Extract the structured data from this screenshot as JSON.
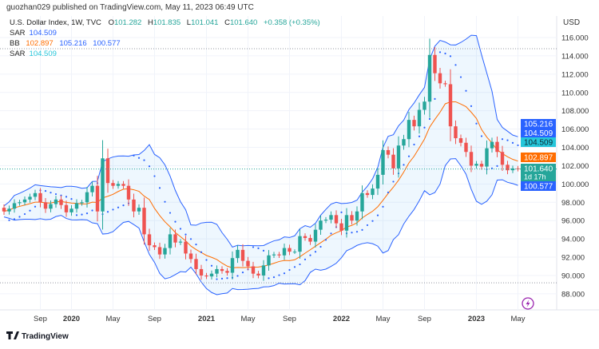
{
  "header": {
    "published": "guozhan029 published on TradingView.com, May 11, 2023 06:49 UTC"
  },
  "legend": {
    "symbol": "U.S. Dollar Index, 1W, TVC",
    "o_label": "O",
    "o": "101.282",
    "h_label": "H",
    "h": "101.835",
    "l_label": "L",
    "l": "101.041",
    "c_label": "C",
    "c": "101.640",
    "change": "+0.358 (+0.35%)",
    "sar1_label": "SAR",
    "sar1": "104.509",
    "bb_label": "BB",
    "bb_basis": "102.897",
    "bb_upper": "105.216",
    "bb_lower": "100.577",
    "sar2_label": "SAR",
    "sar2": "104.509"
  },
  "price_labels": {
    "upper": "105.216",
    "sar1": "104.509",
    "sar2": "104.509",
    "basis": "102.897",
    "last": "101.640",
    "countdown": "1d 17h",
    "lower": "100.577"
  },
  "footer": {
    "brand": "TradingView"
  },
  "colors": {
    "up": "#26a69a",
    "down": "#ef5350",
    "band": "#2962ff",
    "basis": "#ff6d00",
    "sar": "#2962ff",
    "sar2": "#26c6da"
  },
  "chart_data": {
    "type": "candlestick",
    "title": "U.S. Dollar Index, 1W, TVC",
    "currency": "USD",
    "ylim": [
      87,
      117
    ],
    "yticks": [
      "88.000",
      "90.000",
      "92.000",
      "94.000",
      "96.000",
      "98.000",
      "100.000",
      "102.000",
      "104.000",
      "106.000",
      "108.000",
      "110.000",
      "112.000",
      "114.000",
      "116.000"
    ],
    "xticks": [
      "Sep",
      "2020",
      "May",
      "Sep",
      "2021",
      "May",
      "Sep",
      "2022",
      "May",
      "Sep",
      "2023",
      "May"
    ],
    "xtick_index": [
      7,
      13,
      21,
      29,
      39,
      47,
      55,
      65,
      73,
      81,
      91,
      99
    ],
    "period_high": 114.78,
    "period_low": 89.2,
    "closes_start_open": 97.4,
    "closes": [
      97.0,
      97.3,
      97.9,
      98.0,
      98.3,
      98.6,
      99.0,
      98.0,
      97.3,
      97.8,
      98.3,
      97.7,
      96.9,
      97.3,
      97.9,
      98.0,
      99.1,
      99.8,
      97.0,
      102.8,
      100.1,
      99.8,
      100.0,
      99.8,
      98.3,
      97.0,
      97.4,
      94.5,
      93.3,
      93.1,
      92.3,
      93.0,
      94.5,
      93.6,
      93.7,
      92.4,
      91.8,
      90.7,
      90.0,
      89.9,
      90.2,
      90.7,
      90.5,
      90.3,
      91.9,
      92.8,
      91.6,
      91.0,
      90.2,
      90.0,
      91.1,
      92.2,
      92.3,
      92.2,
      93.0,
      92.6,
      92.6,
      94.3,
      94.1,
      93.7,
      95.0,
      96.0,
      96.1,
      96.6,
      95.7,
      94.9,
      96.6,
      96.0,
      97.0,
      99.0,
      98.8,
      99.5,
      101.0,
      103.7,
      103.2,
      101.7,
      104.2,
      104.9,
      107.0,
      106.3,
      108.1,
      109.0,
      114.1,
      112.1,
      111.0,
      110.9,
      106.3,
      105.0,
      104.5,
      103.5,
      102.0,
      102.2,
      101.9,
      103.9,
      104.6,
      103.5,
      102.1,
      101.5,
      101.7,
      101.64
    ]
  }
}
